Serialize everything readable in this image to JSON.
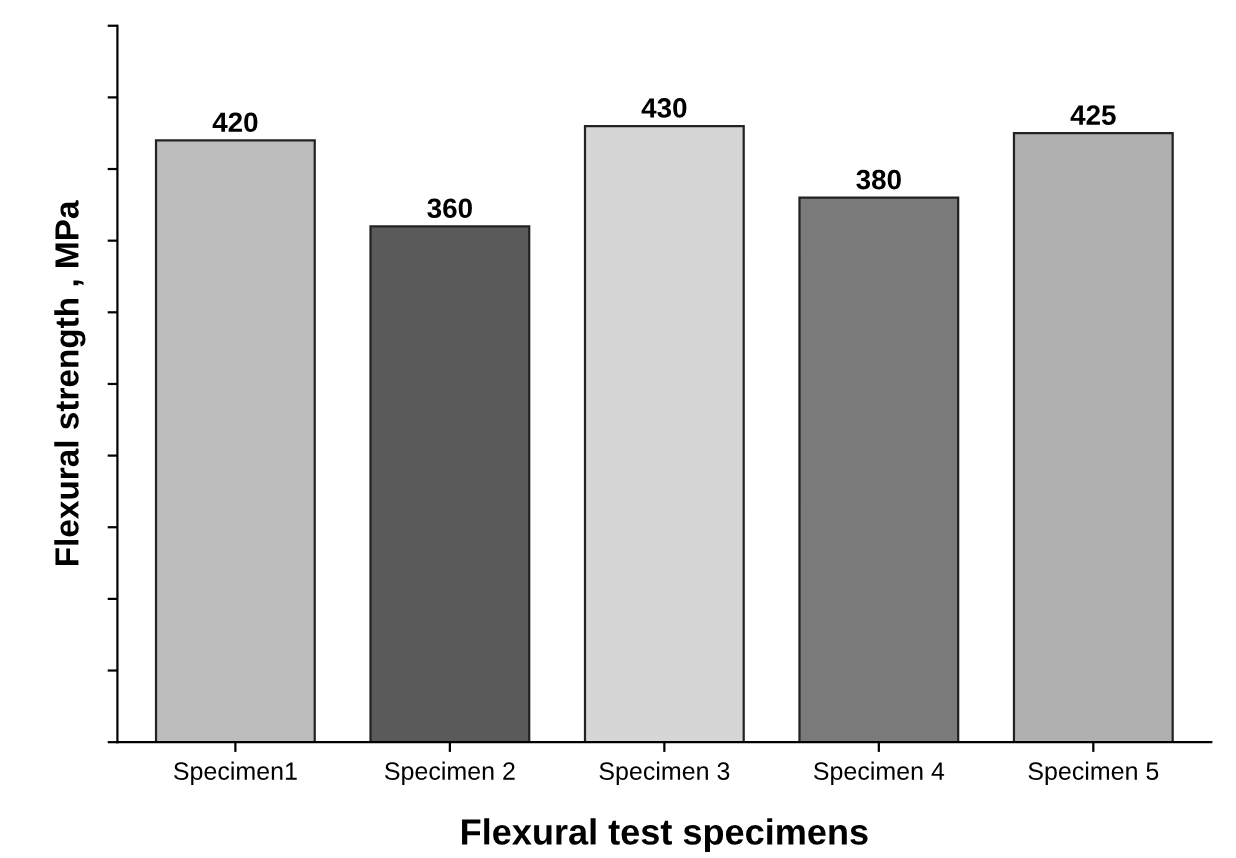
{
  "chart_data": {
    "type": "bar",
    "xlabel": "Flexural test specimens",
    "ylabel": "Flexural strength , MPa",
    "categories": [
      "Specimen1",
      "Specimen 2",
      "Specimen 3",
      "Specimen 4",
      "Specimen 5"
    ],
    "values": [
      420,
      360,
      430,
      380,
      425
    ],
    "colors": [
      "#bcbcbc",
      "#5a5a5a",
      "#d6d6d6",
      "#7a7a7a",
      "#b0b0b0"
    ],
    "data_labels": true,
    "ylim": [
      0,
      500
    ],
    "yticks": [
      {
        "value": 0,
        "label": null
      },
      {
        "value": 50,
        "label": null
      },
      {
        "value": 100,
        "label": null
      },
      {
        "value": 150,
        "label": null
      },
      {
        "value": 200,
        "label": null
      },
      {
        "value": 250,
        "label": null
      },
      {
        "value": 300,
        "label": null
      },
      {
        "value": 350,
        "label": null
      },
      {
        "value": 400,
        "label": null
      },
      {
        "value": 450,
        "label": null
      },
      {
        "value": 500,
        "label": null
      }
    ],
    "tick_labels": "x"
  }
}
